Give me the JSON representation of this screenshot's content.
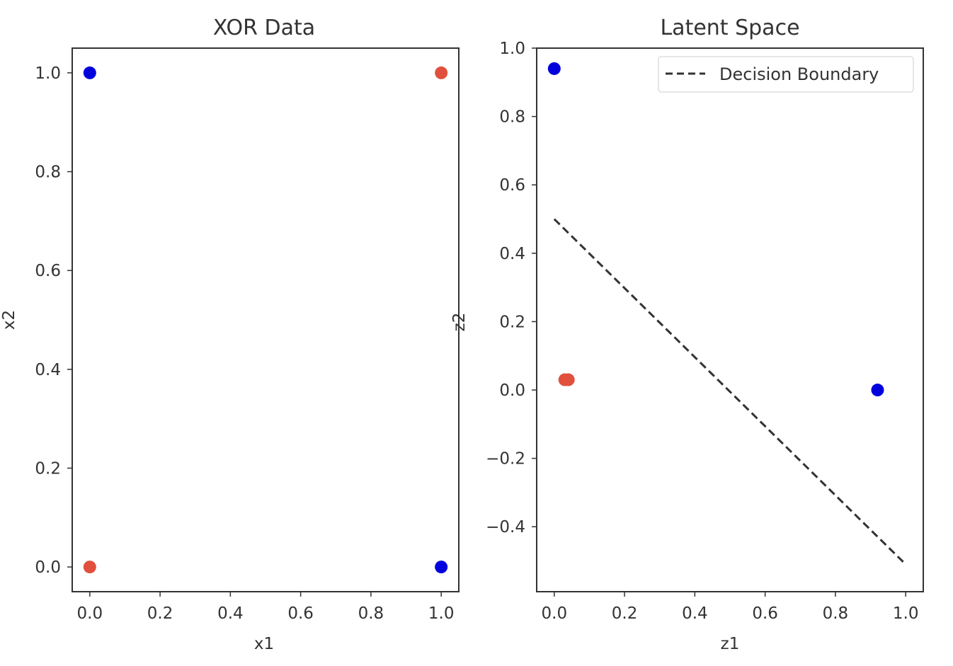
{
  "chart_data": [
    {
      "type": "scatter",
      "title": "XOR Data",
      "xlabel": "x1",
      "ylabel": "x2",
      "xlim": [
        -0.05,
        1.05
      ],
      "ylim": [
        -0.05,
        1.05
      ],
      "xticks": [
        "0.0",
        "0.2",
        "0.4",
        "0.6",
        "0.8",
        "1.0"
      ],
      "yticks": [
        "0.0",
        "0.2",
        "0.4",
        "0.6",
        "0.8",
        "1.0"
      ],
      "points": [
        {
          "x": 0,
          "y": 1,
          "color": "#0000dd"
        },
        {
          "x": 1,
          "y": 1,
          "color": "#e0503c"
        },
        {
          "x": 0,
          "y": 0,
          "color": "#e0503c"
        },
        {
          "x": 1,
          "y": 0,
          "color": "#0000dd"
        }
      ]
    },
    {
      "type": "scatter",
      "title": "Latent Space",
      "xlabel": "z1",
      "ylabel": "z2",
      "xlim": [
        -0.05,
        1.05
      ],
      "ylim": [
        -0.59,
        1.0
      ],
      "xticks": [
        "0.0",
        "0.2",
        "0.4",
        "0.6",
        "0.8",
        "1.0"
      ],
      "yticks": [
        "−0.4",
        "−0.2",
        "0.0",
        "0.2",
        "0.4",
        "0.6",
        "0.8",
        "1.0"
      ],
      "points": [
        {
          "x": 0.0,
          "y": 0.94,
          "color": "#0000dd"
        },
        {
          "x": 0.92,
          "y": 0.0,
          "color": "#0000dd"
        },
        {
          "x": 0.03,
          "y": 0.03,
          "color": "#e0503c"
        },
        {
          "x": 0.04,
          "y": 0.03,
          "color": "#e0503c"
        }
      ],
      "lines": [
        {
          "name": "Decision Boundary",
          "x": [
            0.0,
            1.0
          ],
          "y": [
            0.5,
            -0.51
          ],
          "color": "#333333",
          "style": "dashed"
        }
      ],
      "legend": {
        "placement": "top-right",
        "entries": [
          "Decision Boundary"
        ]
      }
    }
  ]
}
